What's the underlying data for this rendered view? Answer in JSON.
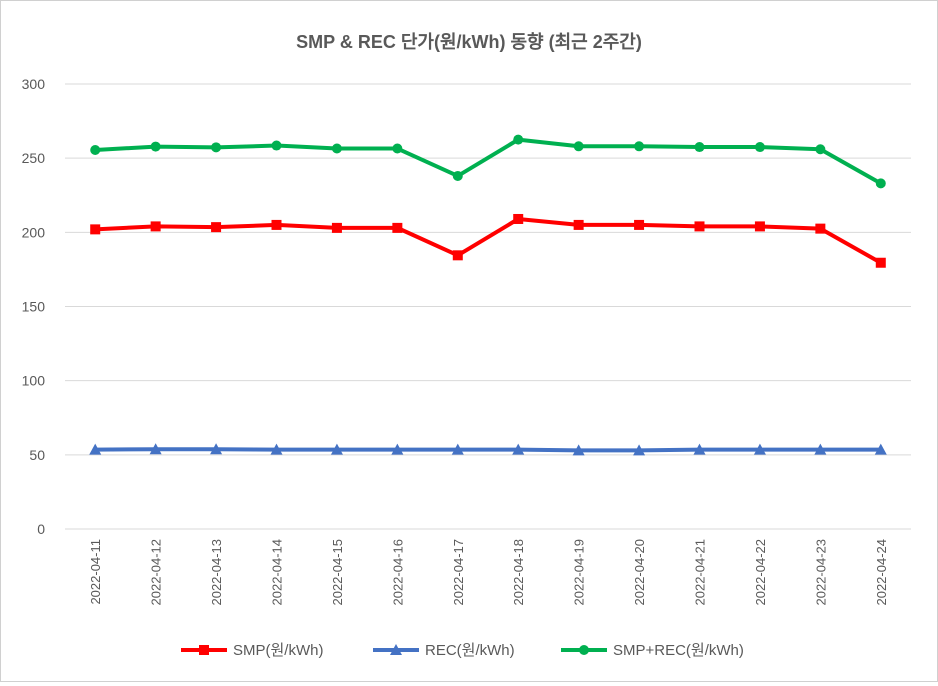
{
  "chart_data": {
    "type": "line",
    "title": "SMP & REC 단가(원/kWh) 동향 (최근 2주간)",
    "xlabel": "",
    "ylabel": "",
    "ylim": [
      0,
      300
    ],
    "yticks": [
      0,
      50,
      100,
      150,
      200,
      250,
      300
    ],
    "grid": true,
    "legend_position": "bottom",
    "categories": [
      "2022-04-11",
      "2022-04-12",
      "2022-04-13",
      "2022-04-14",
      "2022-04-15",
      "2022-04-16",
      "2022-04-17",
      "2022-04-18",
      "2022-04-19",
      "2022-04-20",
      "2022-04-21",
      "2022-04-22",
      "2022-04-23",
      "2022-04-24"
    ],
    "series": [
      {
        "name": "SMP(원/kWh)",
        "color": "#ff0000",
        "marker": "square",
        "values": [
          202,
          204,
          203.5,
          205,
          203,
          203,
          184.5,
          209,
          205,
          205,
          204,
          204,
          202.5,
          179.5
        ]
      },
      {
        "name": "REC(원/kWh)",
        "color": "#4472c4",
        "marker": "triangle",
        "values": [
          53.5,
          53.8,
          53.8,
          53.5,
          53.5,
          53.5,
          53.5,
          53.5,
          53,
          53,
          53.5,
          53.5,
          53.5,
          53.5
        ]
      },
      {
        "name": "SMP+REC(원/kWh)",
        "color": "#00b050",
        "marker": "circle",
        "values": [
          255.5,
          257.8,
          257.3,
          258.5,
          256.5,
          256.5,
          238,
          262.5,
          258,
          258,
          257.5,
          257.5,
          256,
          233
        ]
      }
    ]
  }
}
